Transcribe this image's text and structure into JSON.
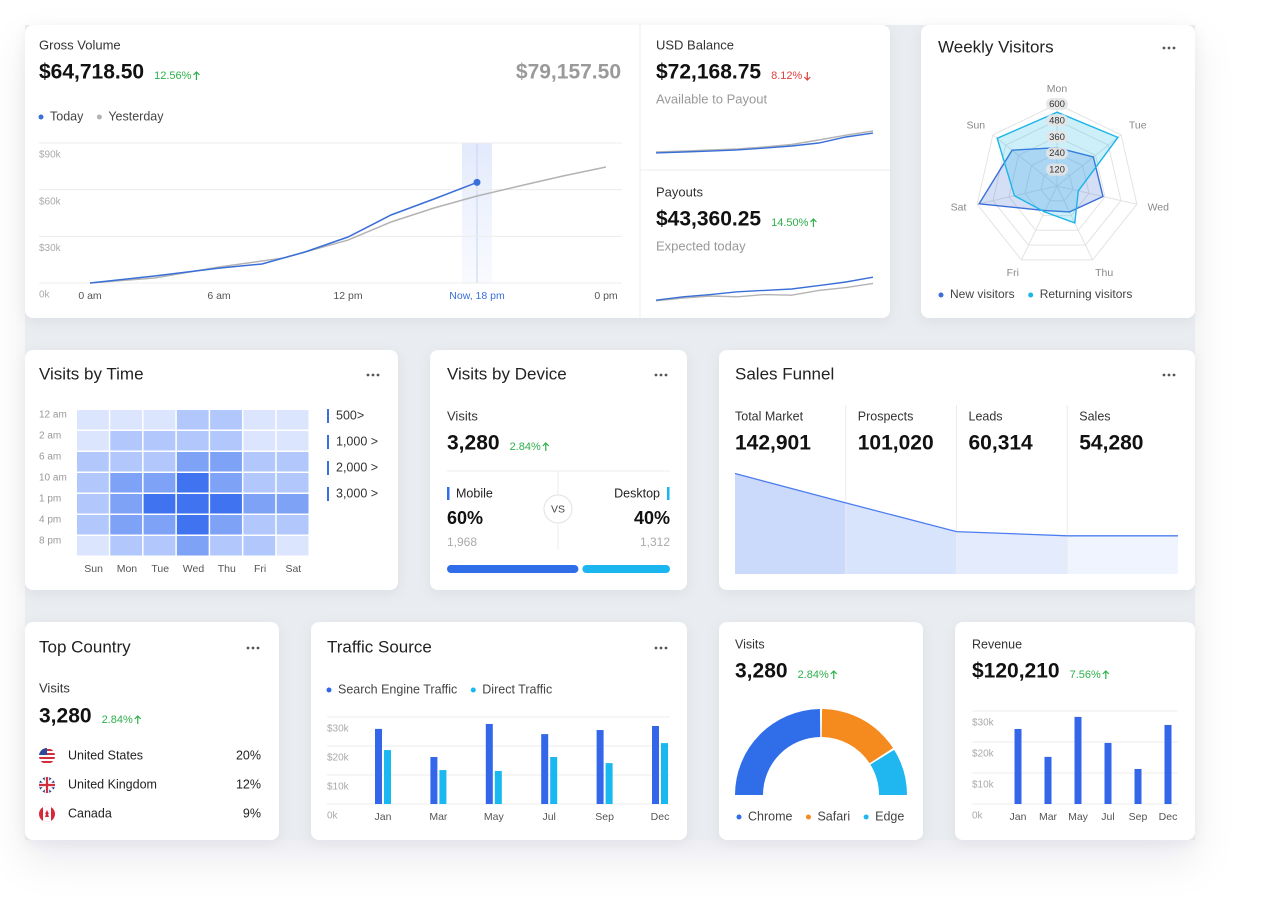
{
  "gross_volume": {
    "title": "Gross Volume",
    "value": "$64,718.50",
    "change": "12.56%",
    "trend": "up",
    "compare": "$79,157.50",
    "chart": {
      "type": "line",
      "xlim": [
        0,
        24
      ],
      "ylim": [
        0,
        90000
      ],
      "highlight": 18,
      "xticks": [
        {
          "value": 0,
          "label": "0 am"
        },
        {
          "value": 6,
          "label": "6 am"
        },
        {
          "value": 12,
          "label": "12 pm"
        },
        {
          "value": 18,
          "label": "Now, 18 pm"
        },
        {
          "value": 24,
          "label": "0 pm"
        }
      ],
      "yticks": [
        {
          "value": 0,
          "label": "0k"
        },
        {
          "value": 30000,
          "label": "$30k"
        },
        {
          "value": 60000,
          "label": "$60k"
        },
        {
          "value": 90000,
          "label": "$90k"
        }
      ],
      "series": [
        {
          "name": "Today",
          "color": "#3a6fd8",
          "x": [
            0,
            3,
            6,
            8,
            10,
            12,
            14,
            16,
            18
          ],
          "values": [
            0,
            4500,
            9600,
            12200,
            19900,
            29600,
            43700,
            54000,
            64700
          ]
        },
        {
          "name": "Yesterday",
          "color": "#b3b3b3",
          "x": [
            0,
            3,
            6,
            9,
            12,
            14,
            16,
            18,
            20,
            22,
            24
          ],
          "values": [
            0,
            3200,
            10300,
            16100,
            27600,
            39200,
            48200,
            55900,
            62400,
            68800,
            74600
          ]
        }
      ]
    }
  },
  "usd_balance": {
    "title": "USD Balance",
    "value": "$72,168.75",
    "change": "8.12%",
    "trend": "down",
    "note": "Available to Payout",
    "sparkline": {
      "type": "line",
      "ylim": [
        0,
        100
      ],
      "series": [
        {
          "color": "#3a6fd8",
          "values": [
            7,
            10,
            13,
            17,
            23,
            30,
            40,
            60,
            73
          ]
        },
        {
          "color": "#b3b3b3",
          "values": [
            10,
            13,
            17,
            20,
            27,
            35,
            50,
            66,
            80
          ]
        }
      ]
    }
  },
  "payouts": {
    "title": "Payouts",
    "value": "$43,360.25",
    "change": "14.50%",
    "trend": "up",
    "note": "Expected today",
    "sparkline": {
      "type": "line",
      "ylim": [
        0,
        100
      ],
      "series": [
        {
          "color": "#3a6fd8",
          "values": [
            10,
            22,
            30,
            40,
            45,
            50,
            62,
            75,
            92
          ]
        },
        {
          "color": "#b3b3b3",
          "values": [
            8,
            18,
            25,
            22,
            30,
            28,
            45,
            55,
            70
          ]
        }
      ]
    }
  },
  "weekly_visitors": {
    "title": "Weekly Visitors",
    "chart": {
      "type": "radar",
      "axes": [
        "Mon",
        "Tue",
        "Wed",
        "Thu",
        "Fri",
        "Sat",
        "Sun"
      ],
      "rlim": [
        0,
        600
      ],
      "rticks": [
        120,
        240,
        360,
        480,
        600
      ],
      "series": [
        {
          "name": "New visitors",
          "color": "#3a6fd8",
          "values": [
            280,
            340,
            345,
            210,
            200,
            585,
            420
          ]
        },
        {
          "name": "Returning visitors",
          "color": "#1bb5e8",
          "values": [
            540,
            570,
            160,
            300,
            210,
            320,
            560
          ]
        }
      ]
    }
  },
  "visits_by_time": {
    "title": "Visits by Time",
    "chart": {
      "type": "heatmap",
      "rows": [
        "12 am",
        "2 am",
        "6 am",
        "10 am",
        "1 pm",
        "4 pm",
        "8 pm"
      ],
      "columns": [
        "Sun",
        "Mon",
        "Tue",
        "Wed",
        "Thu",
        "Fri",
        "Sat"
      ],
      "values": [
        [
          600,
          800,
          800,
          1200,
          1200,
          800,
          600
        ],
        [
          600,
          1200,
          1200,
          1500,
          1200,
          600,
          800
        ],
        [
          1200,
          1500,
          1500,
          2200,
          2200,
          1500,
          1200
        ],
        [
          1200,
          2200,
          2500,
          3200,
          2500,
          1500,
          1500
        ],
        [
          1500,
          2500,
          3200,
          3500,
          3500,
          2200,
          2200
        ],
        [
          1200,
          2200,
          2500,
          3200,
          2500,
          1500,
          1200
        ],
        [
          800,
          1200,
          1500,
          2200,
          1500,
          1200,
          800
        ]
      ],
      "legend": [
        {
          "value": 500,
          "label": "500>"
        },
        {
          "value": 1000,
          "label": "1,000 >"
        },
        {
          "value": 2000,
          "label": "2,000 >"
        },
        {
          "value": 3000,
          "label": "3,000 >"
        }
      ],
      "colors": [
        "#eef2fe",
        "#dbe5fd",
        "#b2c7fb",
        "#7ea2f6",
        "#3f73ef"
      ],
      "legend_color": "#3a6fd8"
    }
  },
  "visits_by_device": {
    "title": "Visits by Device",
    "metric": "Visits",
    "value": "3,280",
    "change": "2.84%",
    "trend": "up",
    "vs": "VS",
    "segments": [
      {
        "name": "Mobile",
        "percent": {
          "value": 60,
          "label": "60%"
        },
        "count": "1,968",
        "color": "#2f6ee8"
      },
      {
        "name": "Desktop",
        "percent": {
          "value": 40,
          "label": "40%"
        },
        "count": "1,312",
        "color": "#1bb5ef"
      }
    ]
  },
  "sales_funnel": {
    "title": "Sales Funnel",
    "chart": {
      "type": "area",
      "ylim": [
        0,
        145000
      ],
      "color": "#4d7ef0",
      "categories": [
        "Total Market",
        "Prospects",
        "Leads",
        "Sales"
      ],
      "values": [
        142901,
        101020,
        60314,
        54280
      ],
      "value_labels": [
        "142,901",
        "101,020",
        "60,314",
        "54,280"
      ],
      "fills": [
        "#cbd9fb",
        "#d8e3fc",
        "#e4ebfd",
        "#f0f4fe"
      ]
    }
  },
  "top_country": {
    "title": "Top Country",
    "metric": "Visits",
    "value": "3,280",
    "change": "2.84%",
    "trend": "up",
    "rows": [
      {
        "name": "United States",
        "share": "20%"
      },
      {
        "name": "United Kingdom",
        "share": "12%"
      },
      {
        "name": "Canada",
        "share": "9%"
      }
    ]
  },
  "traffic_source": {
    "title": "Traffic Source",
    "chart": {
      "type": "bar",
      "ylim": [
        0,
        30000
      ],
      "yticks": [
        {
          "value": 0,
          "label": "0k"
        },
        {
          "value": 10000,
          "label": "$10k"
        },
        {
          "value": 20000,
          "label": "$20k"
        },
        {
          "value": 30000,
          "label": "$30k"
        }
      ],
      "categories": [
        "Jan",
        "Mar",
        "May",
        "Jul",
        "Sep",
        "Dec"
      ],
      "series": [
        {
          "name": "Search Engine Traffic",
          "color": "#3366e8",
          "values": [
            25900,
            16200,
            27600,
            24100,
            25500,
            26900
          ]
        },
        {
          "name": "Direct Traffic",
          "color": "#1ab8f0",
          "values": [
            18600,
            11700,
            11400,
            16200,
            14100,
            21000
          ]
        }
      ]
    }
  },
  "browser_visits": {
    "metric": "Visits",
    "value": "3,280",
    "change": "2.84%",
    "trend": "up",
    "chart": {
      "type": "donut",
      "categories": [
        "Chrome",
        "Safari",
        "Edge"
      ],
      "values": [
        50,
        32,
        18
      ],
      "colors": [
        "#2f6ee8",
        "#f58a1f",
        "#20b6ef"
      ]
    }
  },
  "revenue": {
    "metric": "Revenue",
    "value": "$120,210",
    "change": "7.56%",
    "trend": "up",
    "chart": {
      "type": "bar",
      "ylim": [
        0,
        30000
      ],
      "color": "#3366e8",
      "yticks": [
        {
          "value": 0,
          "label": "0k"
        },
        {
          "value": 10000,
          "label": "$10k"
        },
        {
          "value": 20000,
          "label": "$20k"
        },
        {
          "value": 30000,
          "label": "$30k"
        }
      ],
      "categories": [
        "Jan",
        "Mar",
        "May",
        "Jul",
        "Sep",
        "Dec"
      ],
      "values": [
        24200,
        15200,
        28100,
        19700,
        11300,
        25500
      ]
    }
  }
}
